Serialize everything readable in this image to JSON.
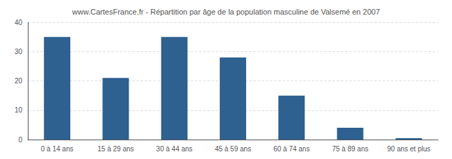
{
  "chart_data": {
    "type": "bar",
    "title": "www.CartesFrance.fr - Répartition par âge de la population masculine de Valsemé en 2007",
    "categories": [
      "0 à 14 ans",
      "15 à 29 ans",
      "30 à 44 ans",
      "45 à 59 ans",
      "60 à 74 ans",
      "75 à 89 ans",
      "90 ans et plus"
    ],
    "values": [
      35,
      21,
      35,
      28,
      15,
      4,
      0.5
    ],
    "color": "#2e6090",
    "ylim": [
      0,
      40
    ],
    "yticks": [
      0,
      10,
      20,
      30,
      40
    ],
    "grid": true
  }
}
